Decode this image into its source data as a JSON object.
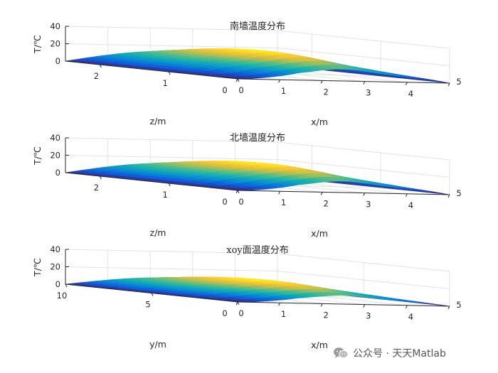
{
  "watermark": {
    "text": "公众号 · 天天Matlab",
    "icon": "wechat-icon"
  },
  "chart_data": [
    {
      "type": "surface",
      "title": "南墙温度分布",
      "zlabel": "T/℃",
      "ylabel": "z/m",
      "xlabel": "x/m",
      "zlim": [
        0,
        40
      ],
      "zticks": [
        "0",
        "20",
        "40"
      ],
      "xlim": [
        0,
        5
      ],
      "xticks": [
        "0",
        "1",
        "2",
        "3",
        "4",
        "5"
      ],
      "ylim": [
        0,
        2.5
      ],
      "yticks": [
        "0",
        "1",
        "2"
      ],
      "colormap": "parula",
      "surface_peak": 25,
      "boundary_value": 0
    },
    {
      "type": "surface",
      "title": "北墙温度分布",
      "zlabel": "T/℃",
      "ylabel": "z/m",
      "xlabel": "x/m",
      "zlim": [
        0,
        40
      ],
      "zticks": [
        "0",
        "20",
        "40"
      ],
      "xlim": [
        0,
        5
      ],
      "xticks": [
        "0",
        "1",
        "2",
        "3",
        "4",
        "5"
      ],
      "ylim": [
        0,
        2.5
      ],
      "yticks": [
        "0",
        "1",
        "2"
      ],
      "colormap": "parula",
      "surface_peak": 24,
      "boundary_value": 0
    },
    {
      "type": "surface",
      "title": "xoy面温度分布",
      "zlabel": "T/℃",
      "ylabel": "y/m",
      "xlabel": "x/m",
      "zlim": [
        0,
        40
      ],
      "zticks": [
        "0",
        "20",
        "40"
      ],
      "xlim": [
        0,
        5
      ],
      "xticks": [
        "0",
        "1",
        "2",
        "3",
        "4",
        "5"
      ],
      "ylim": [
        0,
        10
      ],
      "yticks": [
        "0",
        "5",
        "10"
      ],
      "colormap": "parula",
      "surface_peak": 18,
      "boundary_value": 0
    }
  ]
}
